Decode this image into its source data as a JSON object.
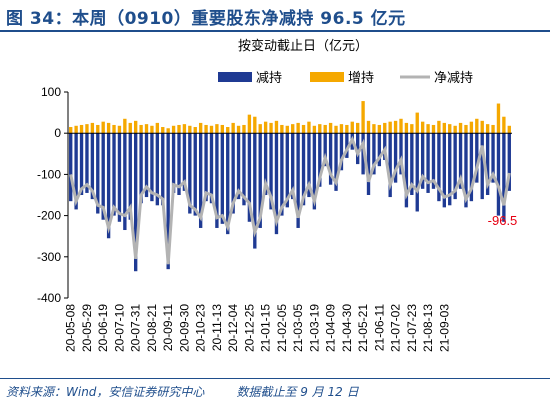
{
  "figure": {
    "title": "图 34：本周（0910）重要股东净减持 96.5 亿元",
    "source": "资料来源：Wind，安信证券研究中心",
    "note": "数据截止至 9 月 12 日"
  },
  "colors": {
    "reduce": "#1f3a93",
    "increase": "#f5a800",
    "net": "#b3b3b3",
    "title": "#1f4e8c",
    "annotation": "#e60012"
  },
  "chart_data": {
    "type": "bar",
    "unit_label": "按变动截止日（亿元）",
    "legend": [
      "减持",
      "增持",
      "净减持"
    ],
    "legend_position": "top-right",
    "ylim": [
      -400,
      100
    ],
    "yticks": [
      100,
      0,
      -100,
      -200,
      -300,
      -400
    ],
    "grid": false,
    "x_tick_labels": [
      "20-05-08",
      "20-05-29",
      "20-06-19",
      "20-07-10",
      "20-07-31",
      "20-08-21",
      "20-09-11",
      "20-09-30",
      "20-10-23",
      "20-11-13",
      "20-12-04",
      "20-12-25",
      "21-01-15",
      "21-02-05",
      "21-03-05",
      "21-03-19",
      "21-04-09",
      "21-04-30",
      "21-05-21",
      "21-06-11",
      "21-07-02",
      "21-07-23",
      "21-08-13",
      "21-09-03"
    ],
    "x_tick_every": 3,
    "series": [
      {
        "name": "减持",
        "kind": "bar",
        "values": [
          -165,
          -185,
          -150,
          -145,
          -160,
          -195,
          -210,
          -255,
          -200,
          -215,
          -235,
          -210,
          -335,
          -170,
          -155,
          -165,
          -175,
          -175,
          -330,
          -145,
          -150,
          -140,
          -195,
          -200,
          -230,
          -165,
          -170,
          -230,
          -220,
          -245,
          -195,
          -160,
          -175,
          -215,
          -280,
          -230,
          -150,
          -185,
          -245,
          -200,
          -180,
          -160,
          -230,
          -175,
          -155,
          -185,
          -130,
          -80,
          -125,
          -140,
          -90,
          -60,
          -40,
          -75,
          -100,
          -150,
          -100,
          -80,
          -65,
          -155,
          -120,
          -100,
          -180,
          -150,
          -190,
          -135,
          -145,
          -135,
          -165,
          -180,
          -175,
          -160,
          -135,
          -180,
          -165,
          -120,
          -160,
          -150,
          -120,
          -200,
          -215,
          -140
        ]
      },
      {
        "name": "增持",
        "kind": "bar",
        "values": [
          15,
          18,
          20,
          22,
          25,
          20,
          28,
          25,
          20,
          18,
          35,
          25,
          30,
          20,
          22,
          18,
          25,
          15,
          12,
          18,
          20,
          22,
          18,
          15,
          25,
          20,
          18,
          22,
          20,
          15,
          25,
          18,
          20,
          45,
          40,
          22,
          28,
          25,
          30,
          20,
          18,
          22,
          25,
          20,
          28,
          18,
          22,
          20,
          25,
          18,
          22,
          20,
          28,
          25,
          78,
          30,
          22,
          20,
          25,
          28,
          30,
          35,
          25,
          22,
          50,
          28,
          22,
          20,
          30,
          25,
          22,
          18,
          25,
          20,
          28,
          35,
          30,
          22,
          20,
          72,
          40,
          18
        ]
      },
      {
        "name": "净减持",
        "kind": "line",
        "values": [
          -100,
          -165,
          -135,
          -125,
          -140,
          -175,
          -180,
          -230,
          -180,
          -195,
          -200,
          -180,
          -305,
          -150,
          -130,
          -145,
          -150,
          -160,
          -318,
          -125,
          -130,
          -118,
          -175,
          -185,
          -205,
          -145,
          -150,
          -205,
          -200,
          -228,
          -170,
          -140,
          -155,
          -170,
          -240,
          -205,
          -122,
          -155,
          -215,
          -180,
          -160,
          -138,
          -205,
          -155,
          -125,
          -165,
          -108,
          -60,
          -100,
          -120,
          -65,
          -40,
          -15,
          -50,
          -25,
          -118,
          -78,
          -60,
          -40,
          -125,
          -90,
          -65,
          -150,
          -125,
          -140,
          -105,
          -120,
          -115,
          -135,
          -155,
          -150,
          -140,
          -110,
          -160,
          -135,
          -85,
          -30,
          -125,
          -100,
          -130,
          -175,
          -96.5
        ]
      }
    ],
    "annotations": [
      {
        "text": "-96.5"
      }
    ]
  }
}
